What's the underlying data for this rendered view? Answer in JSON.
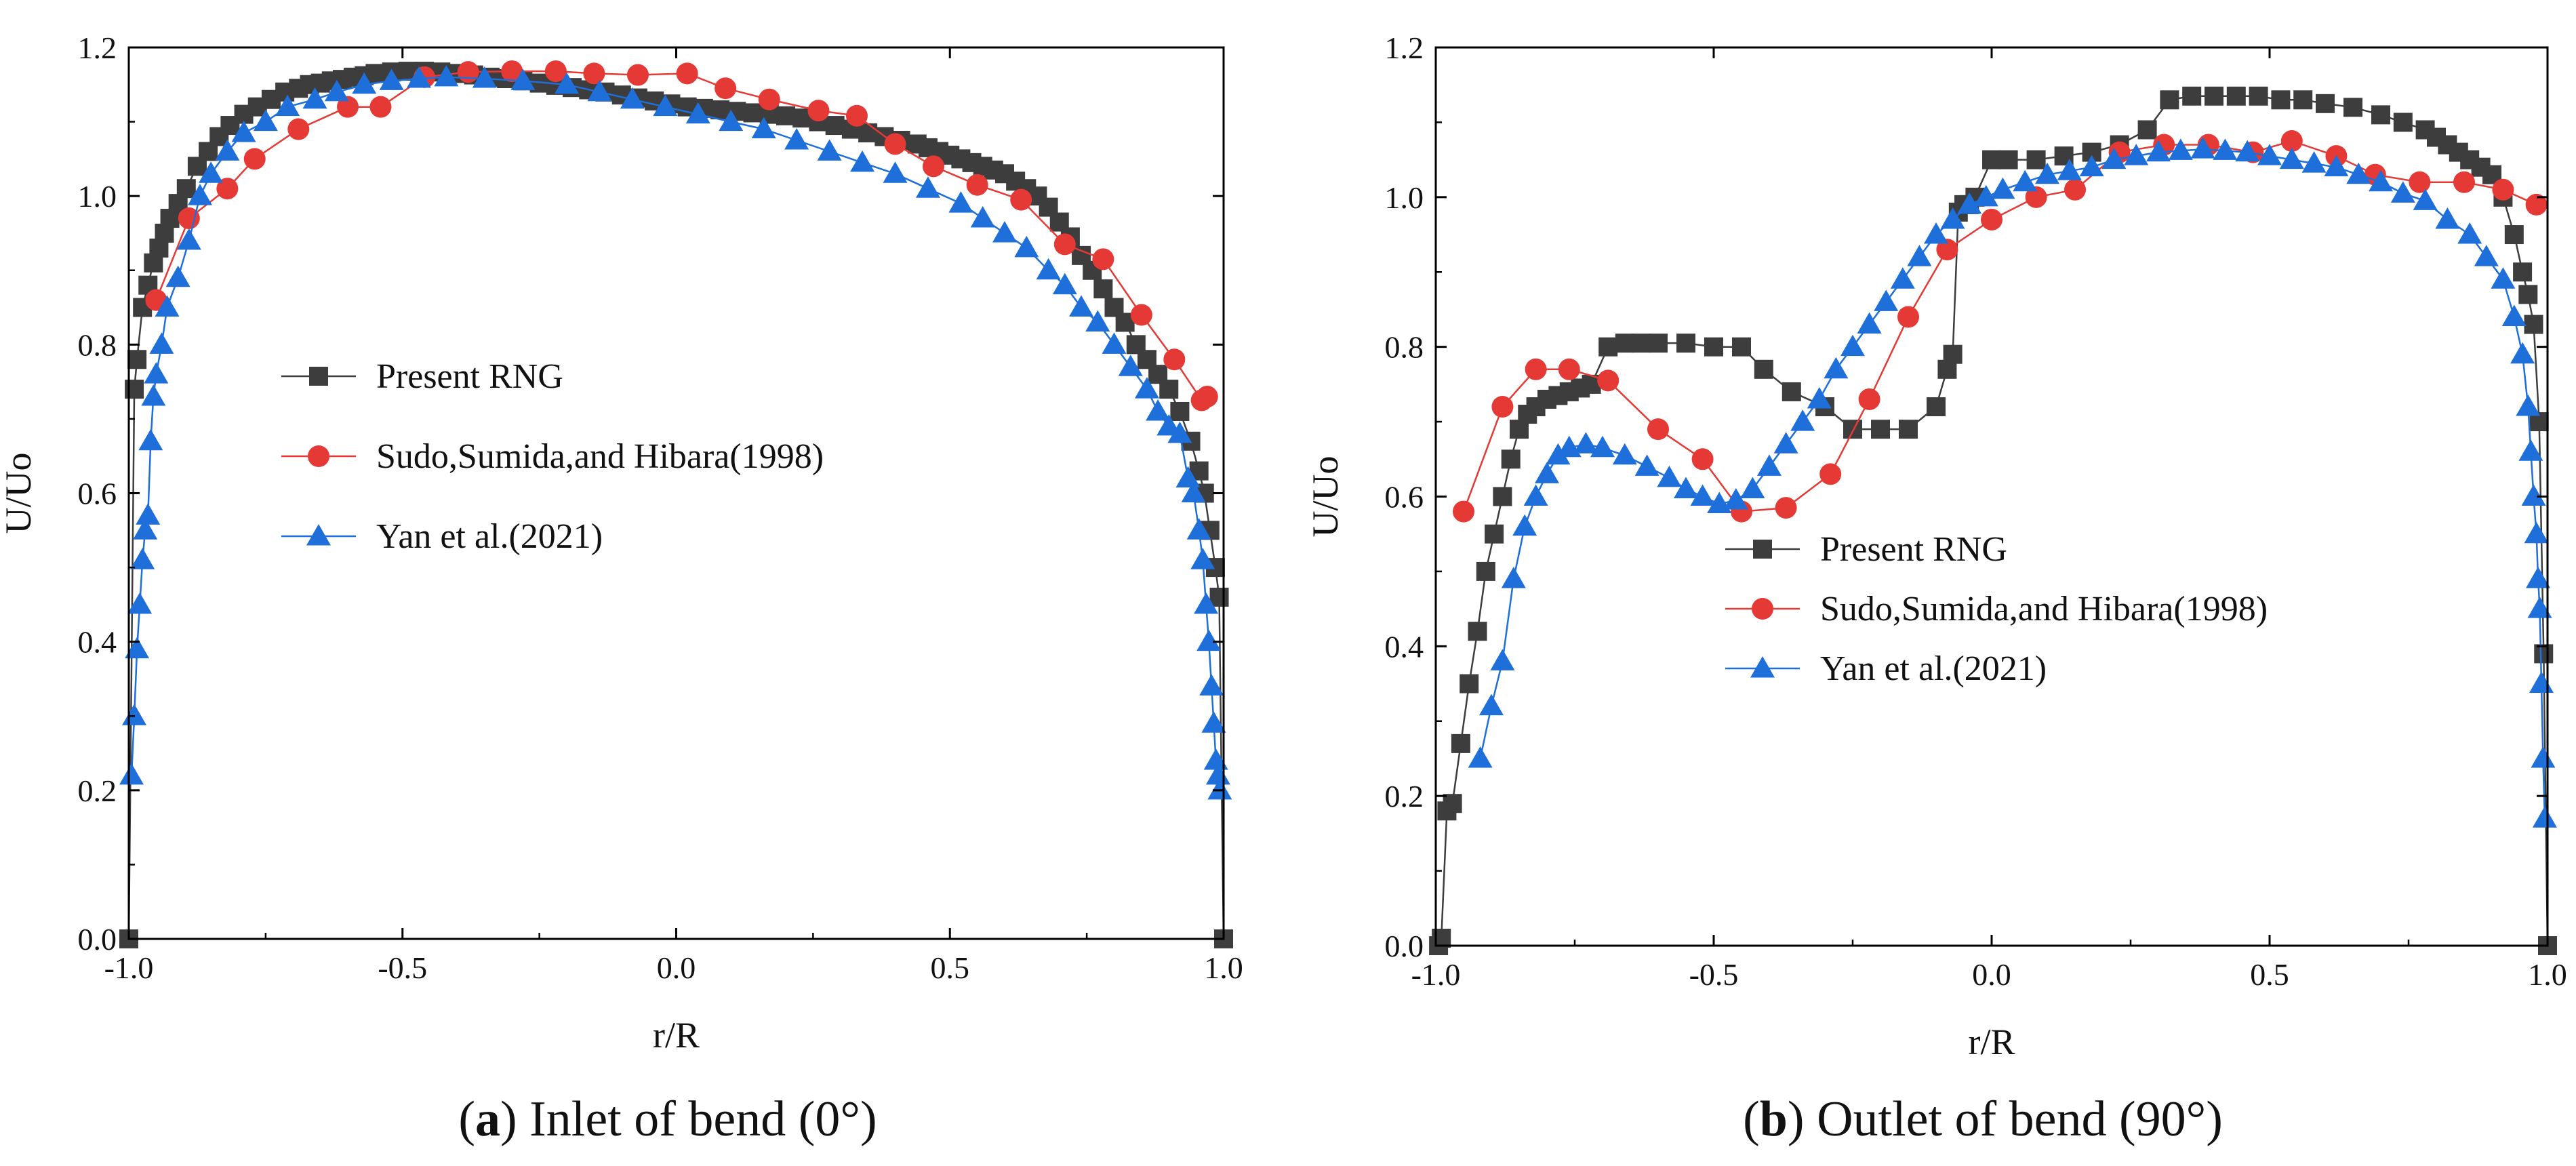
{
  "figure": {
    "captions": [
      {
        "letter": "a",
        "text": " Inlet of bend (0°)"
      },
      {
        "letter": "b",
        "text": " Outlet of bend (90°)"
      }
    ]
  },
  "chart_data": [
    {
      "type": "line",
      "panel": "a",
      "title": "",
      "xlabel": "r/R",
      "ylabel": "U/Uo",
      "xlim": [
        -1.0,
        1.0
      ],
      "ylim": [
        0.0,
        1.2
      ],
      "xticks": [
        "-1.0",
        "-0.5",
        "0.0",
        "0.5",
        "1.0"
      ],
      "yticks": [
        "0.0",
        "0.2",
        "0.4",
        "0.6",
        "0.8",
        "1.0",
        "1.2"
      ],
      "legend_position": "center-left",
      "series": [
        {
          "name": "Present RNG",
          "color": "#3d3d3d",
          "marker": "square",
          "x": [
            -1.0,
            -0.99,
            -0.985,
            -0.975,
            -0.965,
            -0.955,
            -0.945,
            -0.935,
            -0.925,
            -0.91,
            -0.895,
            -0.875,
            -0.855,
            -0.835,
            -0.815,
            -0.79,
            -0.765,
            -0.74,
            -0.715,
            -0.69,
            -0.67,
            -0.65,
            -0.63,
            -0.61,
            -0.59,
            -0.57,
            -0.55,
            -0.52,
            -0.49,
            -0.46,
            -0.43,
            -0.4,
            -0.37,
            -0.34,
            -0.31,
            -0.28,
            -0.25,
            -0.22,
            -0.19,
            -0.16,
            -0.13,
            -0.1,
            -0.07,
            -0.04,
            -0.01,
            0.02,
            0.05,
            0.08,
            0.11,
            0.14,
            0.17,
            0.2,
            0.23,
            0.26,
            0.29,
            0.32,
            0.35,
            0.38,
            0.41,
            0.44,
            0.46,
            0.48,
            0.5,
            0.52,
            0.54,
            0.56,
            0.58,
            0.6,
            0.62,
            0.64,
            0.66,
            0.68,
            0.7,
            0.72,
            0.74,
            0.76,
            0.78,
            0.8,
            0.82,
            0.84,
            0.86,
            0.88,
            0.9,
            0.92,
            0.94,
            0.955,
            0.965,
            0.975,
            0.985,
            0.992,
            1.0
          ],
          "y": [
            0.0,
            0.74,
            0.78,
            0.85,
            0.88,
            0.91,
            0.93,
            0.95,
            0.97,
            0.99,
            1.01,
            1.04,
            1.06,
            1.08,
            1.095,
            1.11,
            1.12,
            1.13,
            1.14,
            1.145,
            1.15,
            1.152,
            1.155,
            1.157,
            1.16,
            1.162,
            1.165,
            1.167,
            1.168,
            1.168,
            1.167,
            1.165,
            1.163,
            1.16,
            1.158,
            1.155,
            1.152,
            1.149,
            1.146,
            1.143,
            1.14,
            1.136,
            1.132,
            1.128,
            1.124,
            1.12,
            1.118,
            1.116,
            1.114,
            1.112,
            1.11,
            1.108,
            1.105,
            1.1,
            1.095,
            1.09,
            1.085,
            1.08,
            1.075,
            1.07,
            1.065,
            1.06,
            1.055,
            1.05,
            1.045,
            1.04,
            1.035,
            1.03,
            1.02,
            1.01,
            1.0,
            0.985,
            0.965,
            0.945,
            0.92,
            0.9,
            0.875,
            0.85,
            0.83,
            0.8,
            0.78,
            0.76,
            0.74,
            0.71,
            0.67,
            0.63,
            0.6,
            0.55,
            0.5,
            0.46,
            0.0
          ]
        },
        {
          "name": "Sudo,Sumida,and Hibara(1998)",
          "color": "#e53935",
          "marker": "circle",
          "x": [
            -0.95,
            -0.89,
            -0.82,
            -0.77,
            -0.69,
            -0.6,
            -0.54,
            -0.46,
            -0.38,
            -0.3,
            -0.22,
            -0.15,
            -0.07,
            0.02,
            0.09,
            0.17,
            0.26,
            0.33,
            0.4,
            0.47,
            0.55,
            0.63,
            0.71,
            0.78,
            0.85,
            0.91,
            0.96,
            0.97
          ],
          "y": [
            0.86,
            0.97,
            1.01,
            1.05,
            1.09,
            1.12,
            1.12,
            1.16,
            1.167,
            1.168,
            1.168,
            1.165,
            1.163,
            1.165,
            1.145,
            1.13,
            1.115,
            1.108,
            1.07,
            1.04,
            1.015,
            0.995,
            0.935,
            0.915,
            0.84,
            0.78,
            0.725,
            0.73
          ]
        },
        {
          "name": "Yan et al.(2021)",
          "color": "#1e6fd9",
          "marker": "triangle",
          "x": [
            -0.995,
            -0.99,
            -0.985,
            -0.98,
            -0.975,
            -0.97,
            -0.965,
            -0.96,
            -0.955,
            -0.95,
            -0.94,
            -0.93,
            -0.91,
            -0.89,
            -0.87,
            -0.85,
            -0.82,
            -0.79,
            -0.75,
            -0.71,
            -0.66,
            -0.62,
            -0.57,
            -0.52,
            -0.47,
            -0.42,
            -0.35,
            -0.28,
            -0.2,
            -0.14,
            -0.08,
            -0.02,
            0.04,
            0.1,
            0.16,
            0.22,
            0.28,
            0.34,
            0.4,
            0.46,
            0.52,
            0.56,
            0.6,
            0.64,
            0.68,
            0.71,
            0.74,
            0.77,
            0.8,
            0.83,
            0.86,
            0.88,
            0.9,
            0.92,
            0.935,
            0.945,
            0.955,
            0.962,
            0.968,
            0.973,
            0.978,
            0.982,
            0.986,
            0.99,
            0.993
          ],
          "y": [
            0.22,
            0.3,
            0.39,
            0.45,
            0.51,
            0.55,
            0.57,
            0.67,
            0.73,
            0.76,
            0.8,
            0.85,
            0.89,
            0.94,
            1.0,
            1.03,
            1.06,
            1.085,
            1.1,
            1.12,
            1.13,
            1.14,
            1.15,
            1.155,
            1.158,
            1.16,
            1.158,
            1.155,
            1.15,
            1.14,
            1.13,
            1.12,
            1.11,
            1.1,
            1.09,
            1.075,
            1.06,
            1.045,
            1.03,
            1.01,
            0.99,
            0.97,
            0.95,
            0.93,
            0.9,
            0.88,
            0.85,
            0.83,
            0.8,
            0.77,
            0.74,
            0.71,
            0.69,
            0.68,
            0.62,
            0.6,
            0.55,
            0.51,
            0.45,
            0.4,
            0.34,
            0.29,
            0.24,
            0.22,
            0.2
          ]
        }
      ]
    },
    {
      "type": "line",
      "panel": "b",
      "title": "",
      "xlabel": "r/R",
      "ylabel": "U/Uo",
      "xlim": [
        -1.0,
        1.0
      ],
      "ylim": [
        0.0,
        1.2
      ],
      "xticks": [
        "-1.0",
        "-0.5",
        "0.0",
        "0.5",
        "1.0"
      ],
      "yticks": [
        "0.0",
        "0.2",
        "0.4",
        "0.6",
        "0.8",
        "1.0",
        "1.2"
      ],
      "legend_position": "lower-center",
      "series": [
        {
          "name": "Present RNG",
          "color": "#3d3d3d",
          "marker": "square",
          "x": [
            -0.995,
            -0.99,
            -0.98,
            -0.97,
            -0.955,
            -0.94,
            -0.925,
            -0.91,
            -0.895,
            -0.88,
            -0.865,
            -0.85,
            -0.835,
            -0.82,
            -0.8,
            -0.78,
            -0.76,
            -0.74,
            -0.72,
            -0.69,
            -0.66,
            -0.63,
            -0.6,
            -0.55,
            -0.5,
            -0.45,
            -0.41,
            -0.36,
            -0.3,
            -0.25,
            -0.2,
            -0.15,
            -0.1,
            -0.08,
            -0.07,
            -0.06,
            -0.05,
            -0.04,
            -0.03,
            0.0,
            0.03,
            0.08,
            0.13,
            0.18,
            0.23,
            0.28,
            0.32,
            0.36,
            0.4,
            0.44,
            0.48,
            0.52,
            0.56,
            0.6,
            0.65,
            0.7,
            0.74,
            0.78,
            0.8,
            0.82,
            0.84,
            0.86,
            0.88,
            0.9,
            0.92,
            0.94,
            0.955,
            0.965,
            0.975,
            0.985,
            0.993,
            1.0
          ],
          "y": [
            0.0,
            0.01,
            0.18,
            0.19,
            0.27,
            0.35,
            0.42,
            0.5,
            0.55,
            0.6,
            0.65,
            0.69,
            0.71,
            0.72,
            0.73,
            0.735,
            0.74,
            0.745,
            0.75,
            0.8,
            0.805,
            0.805,
            0.805,
            0.805,
            0.8,
            0.8,
            0.77,
            0.74,
            0.72,
            0.69,
            0.69,
            0.69,
            0.72,
            0.77,
            0.79,
            0.98,
            0.99,
            0.99,
            1.0,
            1.05,
            1.05,
            1.05,
            1.055,
            1.06,
            1.07,
            1.09,
            1.13,
            1.135,
            1.135,
            1.135,
            1.135,
            1.13,
            1.13,
            1.125,
            1.12,
            1.11,
            1.1,
            1.09,
            1.08,
            1.07,
            1.06,
            1.05,
            1.04,
            1.03,
            1.0,
            0.95,
            0.9,
            0.87,
            0.83,
            0.7,
            0.39,
            0.0
          ]
        },
        {
          "name": "Sudo,Sumida,and Hibara(1998)",
          "color": "#e53935",
          "marker": "circle",
          "x": [
            -0.95,
            -0.88,
            -0.82,
            -0.76,
            -0.69,
            -0.6,
            -0.52,
            -0.45,
            -0.37,
            -0.29,
            -0.22,
            -0.15,
            -0.08,
            0.0,
            0.08,
            0.15,
            0.23,
            0.31,
            0.39,
            0.47,
            0.54,
            0.62,
            0.69,
            0.77,
            0.85,
            0.92,
            0.98
          ],
          "y": [
            0.58,
            0.72,
            0.77,
            0.77,
            0.755,
            0.69,
            0.65,
            0.58,
            0.585,
            0.63,
            0.73,
            0.84,
            0.93,
            0.97,
            1.0,
            1.01,
            1.06,
            1.07,
            1.07,
            1.06,
            1.075,
            1.055,
            1.03,
            1.02,
            1.02,
            1.01,
            0.99
          ]
        },
        {
          "name": "Yan et al.(2021)",
          "color": "#1e6fd9",
          "marker": "triangle",
          "x": [
            -0.92,
            -0.9,
            -0.88,
            -0.86,
            -0.84,
            -0.82,
            -0.8,
            -0.78,
            -0.76,
            -0.73,
            -0.7,
            -0.66,
            -0.62,
            -0.58,
            -0.55,
            -0.52,
            -0.49,
            -0.46,
            -0.43,
            -0.4,
            -0.37,
            -0.34,
            -0.31,
            -0.28,
            -0.25,
            -0.22,
            -0.19,
            -0.16,
            -0.13,
            -0.1,
            -0.07,
            -0.04,
            -0.01,
            0.02,
            0.06,
            0.1,
            0.14,
            0.18,
            0.22,
            0.26,
            0.3,
            0.34,
            0.38,
            0.42,
            0.46,
            0.5,
            0.54,
            0.58,
            0.62,
            0.66,
            0.7,
            0.74,
            0.78,
            0.82,
            0.86,
            0.89,
            0.92,
            0.94,
            0.955,
            0.965,
            0.97,
            0.975,
            0.98,
            0.983,
            0.986,
            0.989,
            0.992,
            0.995
          ],
          "y": [
            0.25,
            0.32,
            0.38,
            0.49,
            0.56,
            0.6,
            0.63,
            0.655,
            0.665,
            0.67,
            0.665,
            0.655,
            0.64,
            0.625,
            0.61,
            0.6,
            0.59,
            0.595,
            0.61,
            0.64,
            0.67,
            0.7,
            0.73,
            0.77,
            0.8,
            0.83,
            0.86,
            0.89,
            0.92,
            0.95,
            0.97,
            0.99,
            1.0,
            1.01,
            1.02,
            1.03,
            1.035,
            1.04,
            1.05,
            1.055,
            1.06,
            1.062,
            1.064,
            1.062,
            1.06,
            1.055,
            1.05,
            1.045,
            1.04,
            1.03,
            1.02,
            1.005,
            0.995,
            0.97,
            0.95,
            0.92,
            0.89,
            0.84,
            0.79,
            0.72,
            0.66,
            0.6,
            0.55,
            0.49,
            0.45,
            0.35,
            0.25,
            0.17
          ]
        }
      ]
    }
  ]
}
